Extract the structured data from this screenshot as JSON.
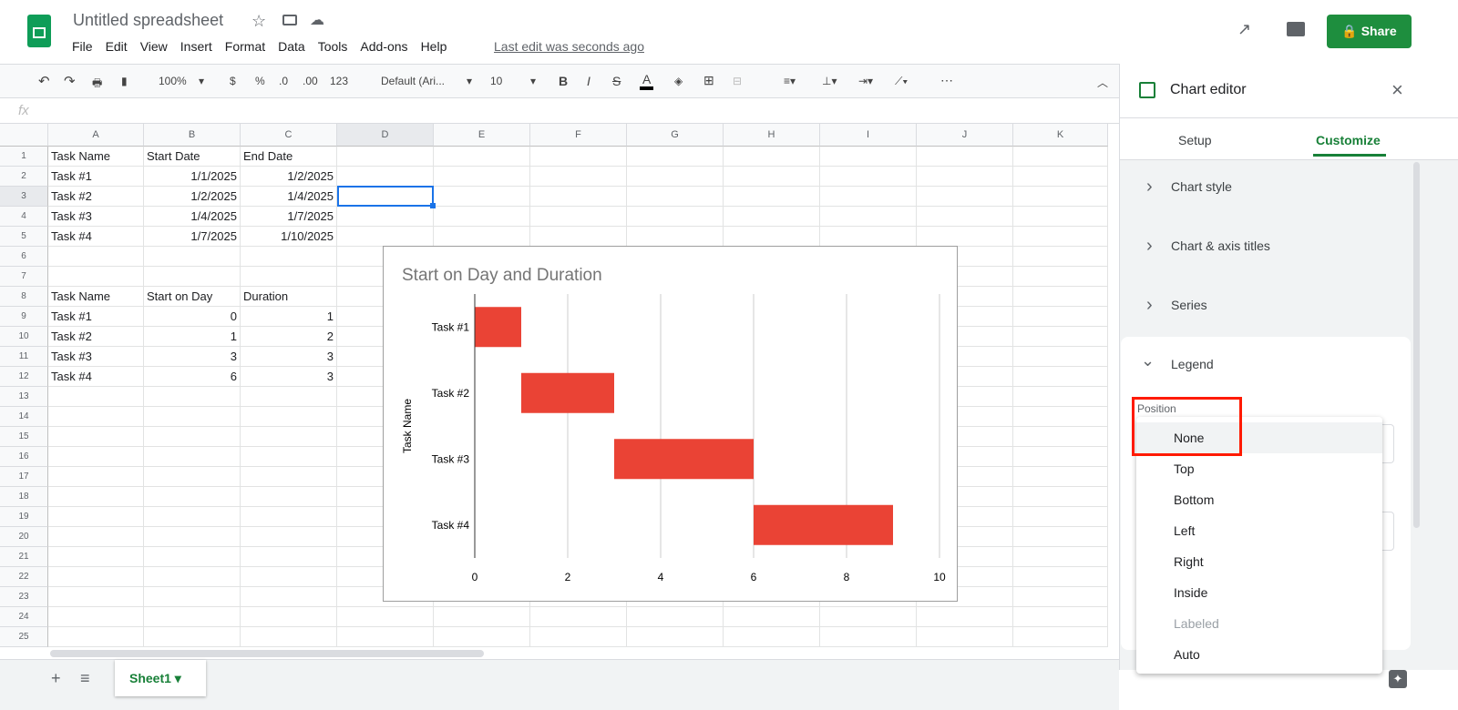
{
  "app": {
    "title": "Untitled spreadsheet",
    "last_edit": "Last edit was seconds ago",
    "share": "Share",
    "menu": [
      "File",
      "Edit",
      "View",
      "Insert",
      "Format",
      "Data",
      "Tools",
      "Add-ons",
      "Help"
    ]
  },
  "toolbar": {
    "zoom": "100%",
    "currency": "$",
    "percent": "%",
    "dec_less": ".0",
    "dec_more": ".00",
    "format": "123",
    "font": "Default (Ari...",
    "size": "10",
    "bold": "B",
    "italic": "I",
    "strike": "S",
    "text_color": "A",
    "more": "⋯"
  },
  "formula": {
    "fx": "fx",
    "value": ""
  },
  "columns": [
    "A",
    "B",
    "C",
    "D",
    "E",
    "F",
    "G",
    "H",
    "I",
    "J",
    "K"
  ],
  "rows": [
    "1",
    "2",
    "3",
    "4",
    "5",
    "6",
    "7",
    "8",
    "9",
    "10",
    "11",
    "12",
    "13",
    "14",
    "15",
    "16",
    "17",
    "18",
    "19",
    "20",
    "21",
    "22",
    "23",
    "24",
    "25"
  ],
  "table1": [
    [
      "Task Name",
      "Start Date",
      "End Date"
    ],
    [
      "Task #1",
      "1/1/2025",
      "1/2/2025"
    ],
    [
      "Task #2",
      "1/2/2025",
      "1/4/2025"
    ],
    [
      "Task #3",
      "1/4/2025",
      "1/7/2025"
    ],
    [
      "Task #4",
      "1/7/2025",
      "1/10/2025"
    ]
  ],
  "table2": [
    [
      "Task Name",
      "Start on Day",
      "Duration"
    ],
    [
      "Task #1",
      "0",
      "1"
    ],
    [
      "Task #2",
      "1",
      "2"
    ],
    [
      "Task #3",
      "3",
      "3"
    ],
    [
      "Task #4",
      "6",
      "3"
    ]
  ],
  "chart_data": {
    "type": "bar",
    "orientation": "horizontal",
    "stacked": true,
    "title": "Start on Day and Duration",
    "ylabel": "Task Name",
    "xlabel": "",
    "categories": [
      "Task #1",
      "Task #2",
      "Task #3",
      "Task #4"
    ],
    "series": [
      {
        "values": [
          0,
          1,
          3,
          6
        ],
        "color": "transparent"
      },
      {
        "values": [
          1,
          2,
          3,
          3
        ],
        "color": "#ea4335"
      }
    ],
    "xlim": [
      0,
      10
    ],
    "xticks": [
      "0",
      "2",
      "4",
      "6",
      "8",
      "10"
    ],
    "grid": true,
    "legend": "none"
  },
  "sheet": {
    "tab": "Sheet1"
  },
  "editor": {
    "title": "Chart editor",
    "tabs": [
      "Setup",
      "Customize"
    ],
    "sections": [
      "Chart style",
      "Chart & axis titles",
      "Series",
      "Legend"
    ],
    "position_label": "Position",
    "options": [
      "None",
      "Top",
      "Bottom",
      "Left",
      "Right",
      "Inside",
      "Labeled",
      "Auto"
    ],
    "selected": "None",
    "accent": "#188038"
  }
}
